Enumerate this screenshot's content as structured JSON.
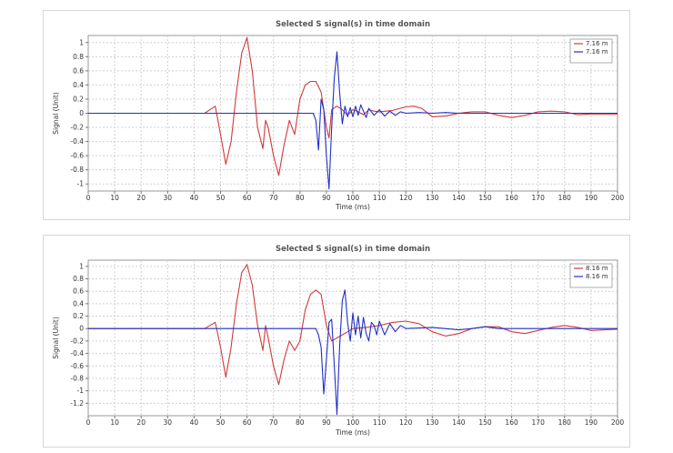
{
  "chart_data": [
    {
      "type": "line",
      "title": "Selected S signal(s) in time domain",
      "xlabel": "Time (ms)",
      "ylabel": "Signal (Unit)",
      "xlim": [
        0,
        200
      ],
      "ylim": [
        -1.1,
        1.1
      ],
      "xticks": [
        "0",
        "10",
        "20",
        "30",
        "40",
        "50",
        "60",
        "70",
        "80",
        "90",
        "100",
        "110",
        "120",
        "130",
        "140",
        "150",
        "160",
        "170",
        "180",
        "190",
        "200"
      ],
      "yticks": [
        "1",
        "0.8",
        "0.6",
        "0.4",
        "0.2",
        "0",
        "-0.2",
        "-0.4",
        "-0.6",
        "-0.8",
        "-1"
      ],
      "grid": true,
      "legend_position": "top-right",
      "series": [
        {
          "name": "7.16 m",
          "color": "#d23a3a",
          "x": [
            0,
            44,
            46,
            48,
            50,
            52,
            54,
            56,
            58,
            60,
            62,
            64,
            66,
            67,
            68,
            70,
            72,
            74,
            76,
            78,
            80,
            82,
            84,
            86,
            88,
            90,
            91,
            92,
            94,
            96,
            98,
            100,
            102,
            104,
            106,
            108,
            110,
            115,
            120,
            123,
            126,
            130,
            135,
            140,
            145,
            150,
            155,
            160,
            165,
            170,
            175,
            180,
            185,
            190,
            195,
            200
          ],
          "y": [
            0,
            0,
            0.05,
            0.1,
            -0.3,
            -0.72,
            -0.4,
            0.3,
            0.85,
            1.07,
            0.6,
            -0.2,
            -0.5,
            -0.1,
            -0.2,
            -0.6,
            -0.88,
            -0.45,
            -0.1,
            -0.3,
            0.2,
            0.4,
            0.45,
            0.45,
            0.3,
            -0.2,
            -0.35,
            0.05,
            0.1,
            0.05,
            -0.03,
            0.05,
            0.02,
            -0.02,
            0.05,
            0.03,
            0.02,
            0.04,
            0.09,
            0.1,
            0.07,
            -0.05,
            -0.04,
            0,
            0.02,
            0.02,
            -0.03,
            -0.06,
            -0.03,
            0.02,
            0.03,
            0.02,
            -0.02,
            -0.01,
            -0.01,
            -0.01
          ]
        },
        {
          "name": "7.16 m",
          "color": "#2030c8",
          "x": [
            0,
            85,
            86,
            87,
            88,
            89,
            90,
            91,
            92,
            93,
            94,
            95,
            96,
            97,
            98,
            99,
            100,
            101,
            102,
            103,
            104,
            105,
            106,
            108,
            110,
            112,
            114,
            116,
            118,
            120,
            125,
            130,
            135,
            140,
            150,
            160,
            170,
            180,
            190,
            200
          ],
          "y": [
            0,
            0,
            -0.1,
            -0.52,
            0.2,
            0.05,
            -0.6,
            -1.07,
            -0.2,
            0.5,
            0.87,
            0.3,
            -0.15,
            0.1,
            -0.05,
            0.08,
            -0.05,
            0.1,
            -0.03,
            0.12,
            0.03,
            -0.06,
            0.07,
            -0.03,
            0.05,
            -0.04,
            0.03,
            -0.03,
            0.02,
            0,
            0.01,
            0,
            0.01,
            0,
            0,
            0,
            0,
            0,
            0,
            0
          ]
        }
      ]
    },
    {
      "type": "line",
      "title": "Selected S signal(s) in time domain",
      "xlabel": "Time (ms)",
      "ylabel": "Signal (Unit)",
      "xlim": [
        0,
        200
      ],
      "ylim": [
        -1.4,
        1.1
      ],
      "xticks": [
        "0",
        "10",
        "20",
        "30",
        "40",
        "50",
        "60",
        "70",
        "80",
        "90",
        "100",
        "110",
        "120",
        "130",
        "140",
        "150",
        "160",
        "170",
        "180",
        "190",
        "200"
      ],
      "yticks": [
        "1",
        "0.8",
        "0.6",
        "0.4",
        "0.2",
        "0",
        "-0.2",
        "-0.4",
        "-0.6",
        "-0.8",
        "-1",
        "-1.2"
      ],
      "grid": true,
      "legend_position": "top-right",
      "series": [
        {
          "name": "8.16 m",
          "color": "#d23a3a",
          "x": [
            0,
            44,
            46,
            48,
            50,
            52,
            54,
            56,
            58,
            60,
            62,
            64,
            66,
            67,
            68,
            70,
            72,
            74,
            76,
            78,
            80,
            82,
            84,
            86,
            88,
            90,
            92,
            94,
            96,
            98,
            100,
            105,
            110,
            115,
            120,
            125,
            130,
            135,
            140,
            145,
            150,
            155,
            160,
            165,
            170,
            175,
            180,
            185,
            190,
            195,
            200
          ],
          "y": [
            0,
            0,
            0.05,
            0.1,
            -0.3,
            -0.78,
            -0.3,
            0.4,
            0.9,
            1.03,
            0.7,
            0.05,
            -0.35,
            0.05,
            -0.15,
            -0.6,
            -0.9,
            -0.5,
            -0.2,
            -0.35,
            -0.2,
            0.3,
            0.55,
            0.62,
            0.55,
            0.05,
            -0.2,
            -0.15,
            -0.1,
            -0.05,
            0,
            0.02,
            0.05,
            0.1,
            0.12,
            0.08,
            -0.05,
            -0.12,
            -0.08,
            0,
            0.03,
            0.03,
            -0.05,
            -0.08,
            -0.03,
            0.02,
            0.05,
            0.02,
            -0.03,
            -0.02,
            -0.01
          ]
        },
        {
          "name": "8.16 m",
          "color": "#2030c8",
          "x": [
            0,
            86,
            87,
            88,
            89,
            90,
            91,
            92,
            93,
            94,
            95,
            96,
            97,
            98,
            99,
            100,
            101,
            102,
            103,
            104,
            105,
            106,
            107,
            108,
            109,
            110,
            112,
            114,
            116,
            118,
            120,
            125,
            130,
            140,
            145,
            150,
            155,
            160,
            170,
            180,
            190,
            200
          ],
          "y": [
            0,
            0,
            -0.1,
            -0.3,
            -1.05,
            -0.5,
            0.1,
            0.15,
            -0.6,
            -1.38,
            -0.3,
            0.45,
            0.62,
            0.1,
            -0.2,
            0.25,
            -0.1,
            0.2,
            -0.15,
            0.18,
            -0.08,
            -0.2,
            0.1,
            0.05,
            -0.1,
            0.12,
            -0.1,
            0.08,
            -0.05,
            0.05,
            0,
            0.01,
            0.02,
            -0.02,
            0,
            0.03,
            0,
            0,
            0,
            0,
            0,
            0
          ]
        }
      ]
    }
  ]
}
